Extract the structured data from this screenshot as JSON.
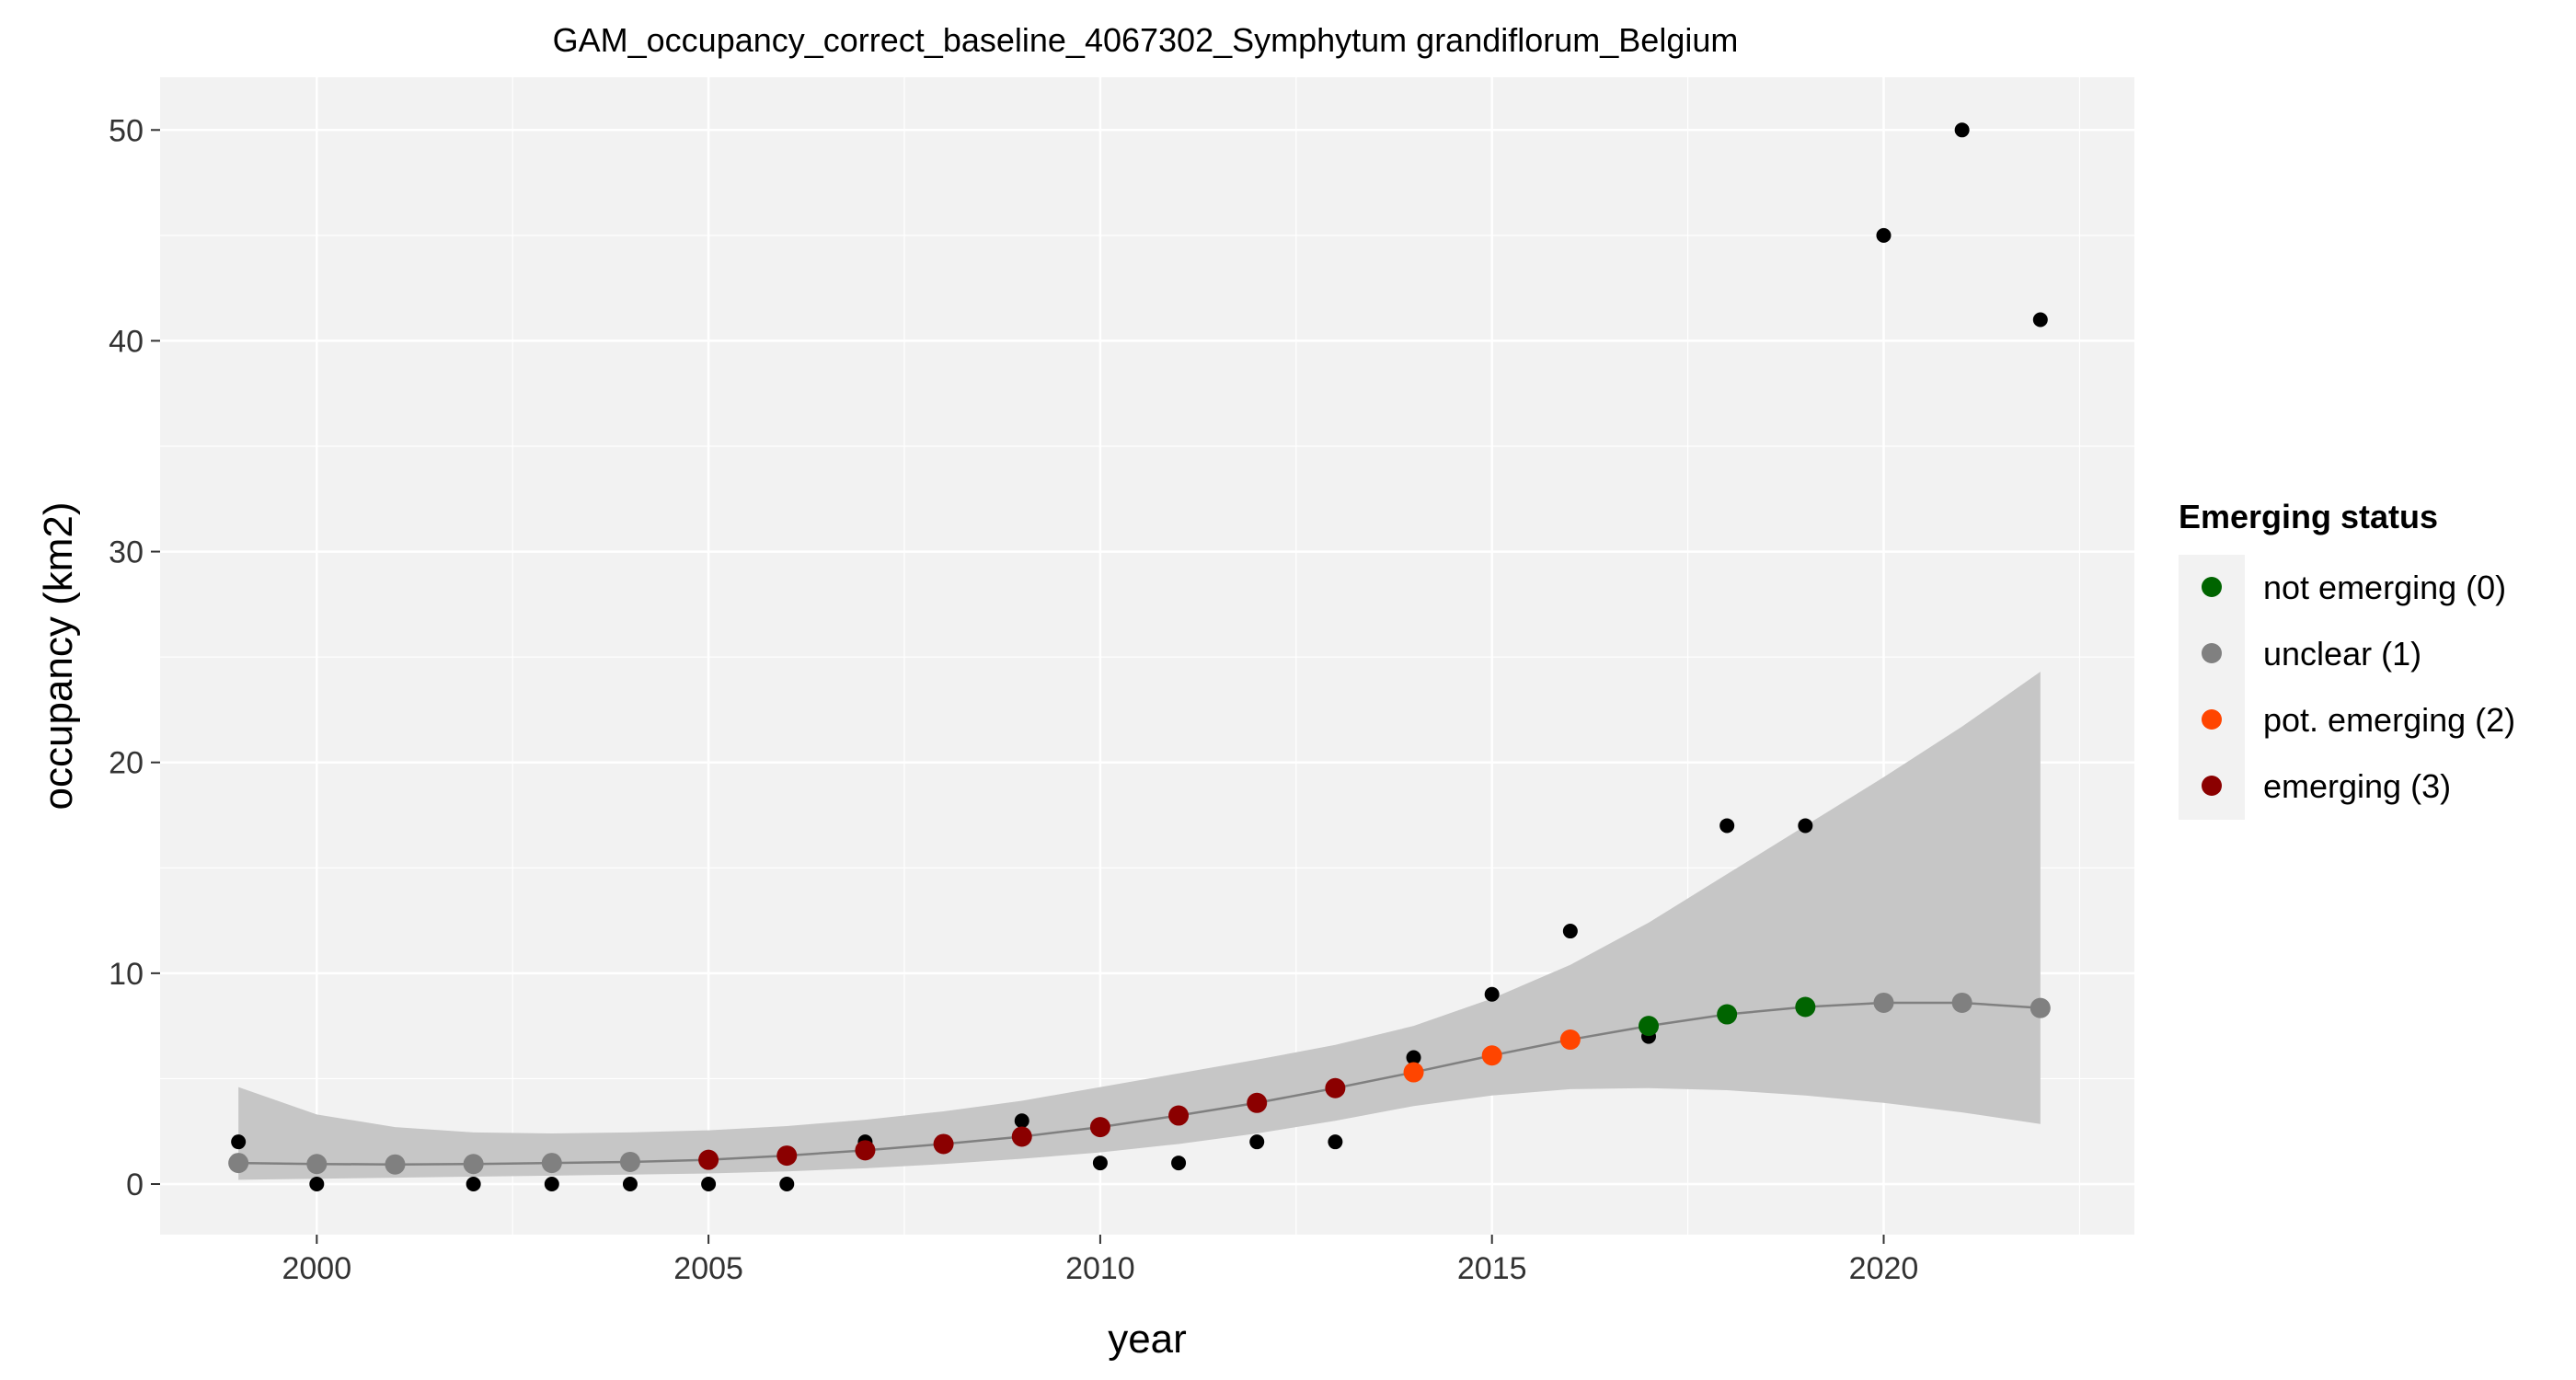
{
  "chart_data": {
    "type": "scatter",
    "title": "GAM_occupancy_correct_baseline_4067302_Symphytum grandiflorum_Belgium",
    "xlabel": "year",
    "ylabel": "occupancy (km2)",
    "xlim": [
      1998,
      2023.2
    ],
    "ylim": [
      -2.4,
      52.5
    ],
    "x_ticks": [
      2000,
      2005,
      2010,
      2015,
      2020
    ],
    "y_ticks": [
      0,
      10,
      20,
      30,
      40,
      50
    ],
    "grid": true,
    "panel_background": "#f2f2f2",
    "legend": {
      "title": "Emerging status",
      "placement": "right",
      "items": [
        {
          "label": "not emerging (0)",
          "color": "#006400"
        },
        {
          "label": "unclear (1)",
          "color": "#808080"
        },
        {
          "label": "pot. emerging (2)",
          "color": "#ff4500"
        },
        {
          "label": "emerging (3)",
          "color": "#8b0000"
        }
      ]
    },
    "observed": {
      "color": "#000000",
      "points": [
        [
          1999,
          2
        ],
        [
          2000,
          0
        ],
        [
          2002,
          0
        ],
        [
          2003,
          0
        ],
        [
          2004,
          0
        ],
        [
          2005,
          0
        ],
        [
          2006,
          0
        ],
        [
          2007,
          2
        ],
        [
          2009,
          3
        ],
        [
          2010,
          1
        ],
        [
          2011,
          1
        ],
        [
          2012,
          2
        ],
        [
          2013,
          2
        ],
        [
          2014,
          6
        ],
        [
          2015,
          9
        ],
        [
          2016,
          12
        ],
        [
          2017,
          7
        ],
        [
          2018,
          17
        ],
        [
          2019,
          17
        ],
        [
          2020,
          45
        ],
        [
          2021,
          50
        ],
        [
          2022,
          41
        ]
      ]
    },
    "fitted": {
      "line_color": "#808080",
      "ribbon_color": "#c6c6c6",
      "points": [
        {
          "x": 1999,
          "y": 1.0,
          "lower": 0.2,
          "upper": 4.6,
          "status": 1
        },
        {
          "x": 2000,
          "y": 0.95,
          "lower": 0.25,
          "upper": 3.3,
          "status": 1
        },
        {
          "x": 2001,
          "y": 0.93,
          "lower": 0.3,
          "upper": 2.7,
          "status": 1
        },
        {
          "x": 2002,
          "y": 0.95,
          "lower": 0.35,
          "upper": 2.45,
          "status": 1
        },
        {
          "x": 2003,
          "y": 1.0,
          "lower": 0.4,
          "upper": 2.4,
          "status": 1
        },
        {
          "x": 2004,
          "y": 1.05,
          "lower": 0.45,
          "upper": 2.45,
          "status": 1
        },
        {
          "x": 2005,
          "y": 1.15,
          "lower": 0.5,
          "upper": 2.55,
          "status": 3
        },
        {
          "x": 2006,
          "y": 1.35,
          "lower": 0.6,
          "upper": 2.75,
          "status": 3
        },
        {
          "x": 2007,
          "y": 1.6,
          "lower": 0.75,
          "upper": 3.05,
          "status": 3
        },
        {
          "x": 2008,
          "y": 1.9,
          "lower": 0.95,
          "upper": 3.45,
          "status": 3
        },
        {
          "x": 2009,
          "y": 2.25,
          "lower": 1.2,
          "upper": 3.95,
          "status": 3
        },
        {
          "x": 2010,
          "y": 2.7,
          "lower": 1.5,
          "upper": 4.6,
          "status": 3
        },
        {
          "x": 2011,
          "y": 3.25,
          "lower": 1.9,
          "upper": 5.25,
          "status": 3
        },
        {
          "x": 2012,
          "y": 3.85,
          "lower": 2.4,
          "upper": 5.9,
          "status": 3
        },
        {
          "x": 2013,
          "y": 4.55,
          "lower": 3.0,
          "upper": 6.6,
          "status": 3
        },
        {
          "x": 2014,
          "y": 5.3,
          "lower": 3.7,
          "upper": 7.5,
          "status": 2
        },
        {
          "x": 2015,
          "y": 6.1,
          "lower": 4.2,
          "upper": 8.8,
          "status": 2
        },
        {
          "x": 2016,
          "y": 6.85,
          "lower": 4.5,
          "upper": 10.4,
          "status": 2
        },
        {
          "x": 2017,
          "y": 7.5,
          "lower": 4.55,
          "upper": 12.4,
          "status": 0
        },
        {
          "x": 2018,
          "y": 8.05,
          "lower": 4.45,
          "upper": 14.7,
          "status": 0
        },
        {
          "x": 2019,
          "y": 8.4,
          "lower": 4.2,
          "upper": 17.0,
          "status": 0
        },
        {
          "x": 2020,
          "y": 8.6,
          "lower": 3.85,
          "upper": 19.3,
          "status": 1
        },
        {
          "x": 2021,
          "y": 8.6,
          "lower": 3.4,
          "upper": 21.7,
          "status": 1
        },
        {
          "x": 2022,
          "y": 8.35,
          "lower": 2.85,
          "upper": 24.3,
          "status": 1
        }
      ]
    }
  }
}
